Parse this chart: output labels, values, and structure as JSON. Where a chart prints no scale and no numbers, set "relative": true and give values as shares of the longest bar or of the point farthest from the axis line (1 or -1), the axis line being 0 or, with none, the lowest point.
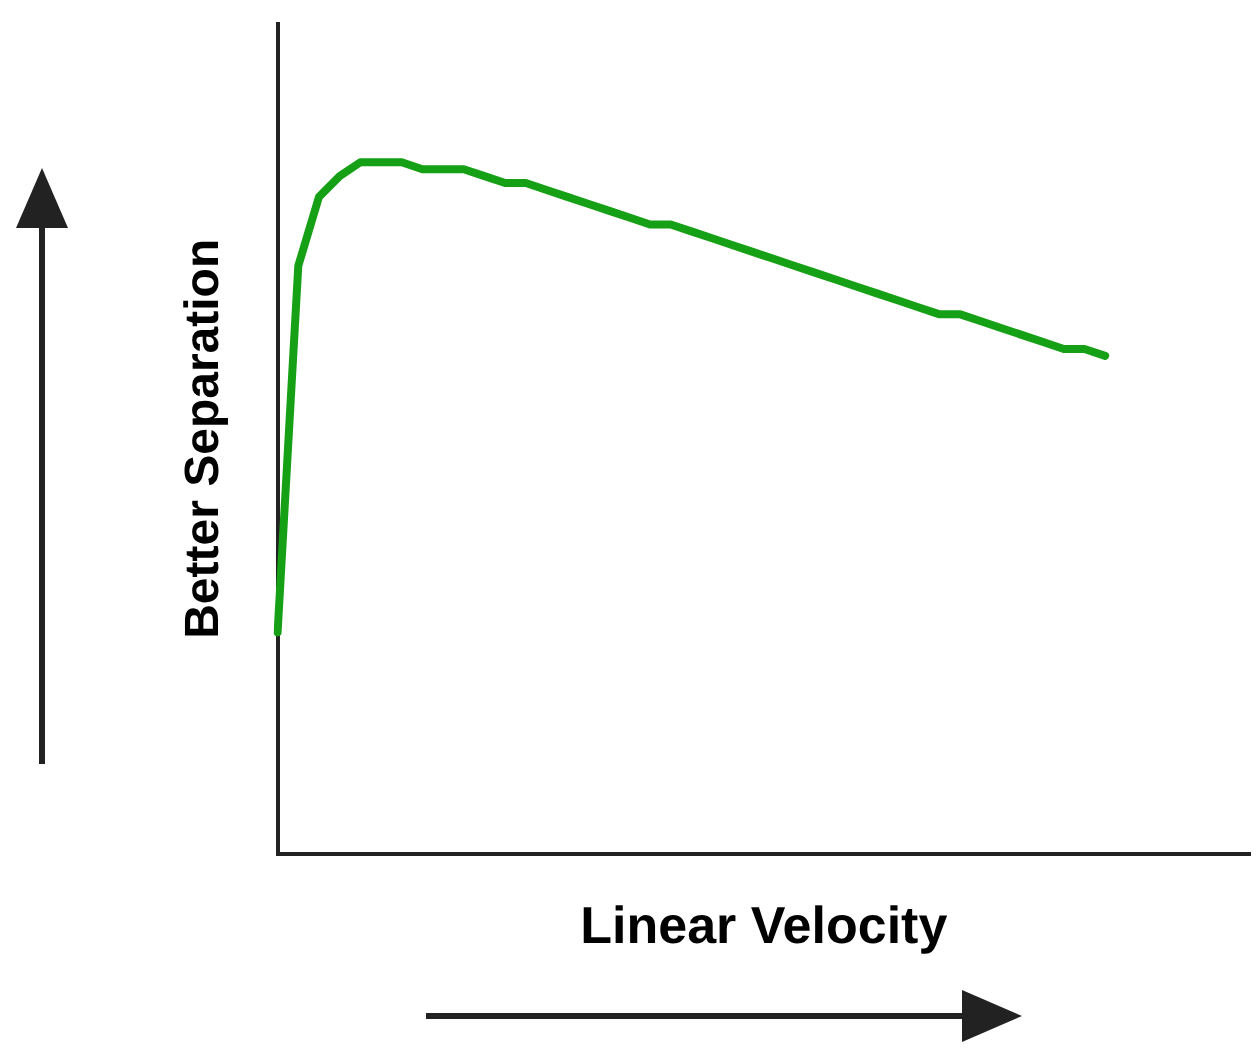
{
  "chart_data": {
    "type": "line",
    "relative": true,
    "xlabel": "Linear Velocity",
    "ylabel": "Better Separation",
    "marker": "none",
    "categories": [
      null,
      null,
      null,
      null,
      null,
      null,
      null,
      null,
      null,
      null,
      null,
      null,
      null,
      null,
      null,
      null,
      null,
      null,
      null,
      null,
      null,
      null,
      null,
      null,
      null,
      null,
      null,
      null,
      null,
      null,
      null,
      null,
      null,
      null,
      null,
      null,
      null,
      null,
      null,
      null,
      null,
      null,
      null,
      null,
      null,
      null,
      null,
      null
    ],
    "series": [
      {
        "color": "#16a016",
        "values": [
          0.32,
          0.85,
          0.95,
          0.98,
          1.0,
          1.0,
          1.0,
          0.99,
          0.99,
          0.99,
          0.98,
          0.97,
          0.97,
          0.96,
          0.95,
          0.94,
          0.93,
          0.92,
          0.91,
          0.91,
          0.9,
          0.89,
          0.88,
          0.87,
          0.86,
          0.85,
          0.84,
          0.83,
          0.82,
          0.81,
          0.8,
          0.79,
          0.78,
          0.78,
          0.77,
          0.76,
          0.75,
          0.74,
          0.73,
          0.73,
          0.72,
          null,
          null,
          null,
          null,
          null,
          null,
          null
        ]
      }
    ]
  }
}
